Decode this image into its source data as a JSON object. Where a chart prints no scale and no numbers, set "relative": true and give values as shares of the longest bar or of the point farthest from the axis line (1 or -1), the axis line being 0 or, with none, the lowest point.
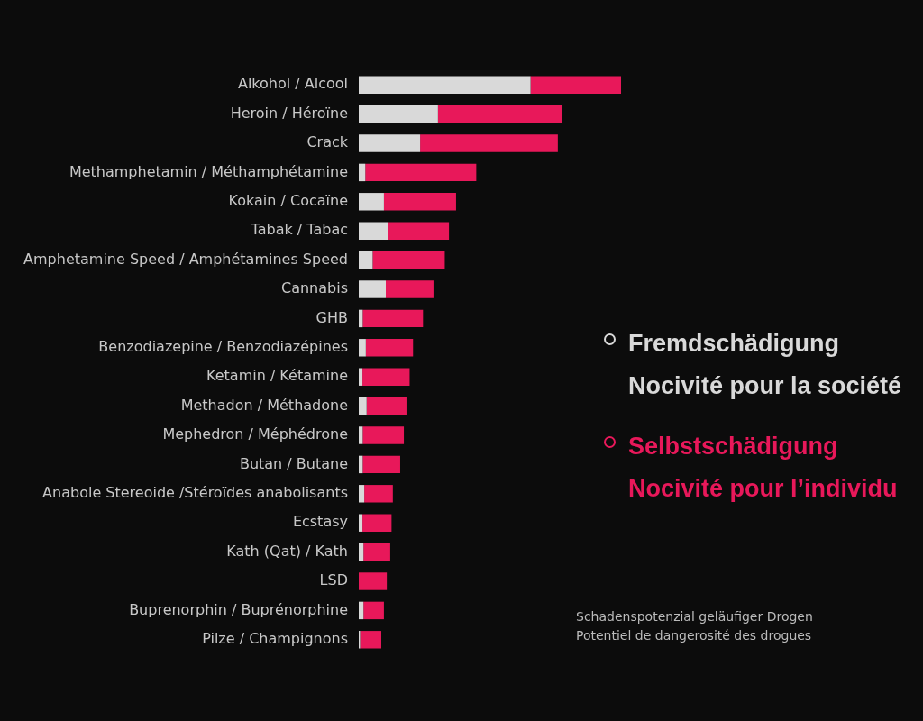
{
  "chart_data": {
    "type": "bar",
    "orientation": "horizontal",
    "stacked": true,
    "relative": true,
    "legend": "right",
    "categories": [
      "Alkohol / Alcool",
      "Heroin / Héroïne",
      "Crack",
      "Methamphetamin / Méthamphétamine",
      "Kokain / Cocaïne",
      "Tabak / Tabac",
      "Amphetamine Speed / Amphétamines Speed",
      "Cannabis",
      "GHB",
      "Benzodiazepine / Benzodiazépines",
      "Ketamin / Kétamine",
      "Methadon / Méthadone",
      "Mephedron / Méphédrone",
      "Butan / Butane",
      "Anabole Stereoide /Stéroïdes anabolisants",
      "Ecstasy",
      "Kath (Qat) / Kath",
      "LSD",
      "Buprenorphin / Buprénorphine",
      "Pilze / Champignons"
    ],
    "series": [
      {
        "name": "Fremdschädigung\nNocivité pour la société",
        "color": "#d9d9d9",
        "values": [
          0.655,
          0.302,
          0.234,
          0.025,
          0.096,
          0.113,
          0.053,
          0.103,
          0.015,
          0.027,
          0.014,
          0.03,
          0.015,
          0.015,
          0.021,
          0.014,
          0.018,
          0,
          0.018,
          0.005
        ]
      },
      {
        "name": "Selbstschädigung\nNocivité pour l’individu",
        "color": "#e8185a",
        "values": [
          0.345,
          0.472,
          0.525,
          0.423,
          0.275,
          0.231,
          0.275,
          0.182,
          0.23,
          0.18,
          0.18,
          0.152,
          0.157,
          0.143,
          0.109,
          0.111,
          0.102,
          0.107,
          0.078,
          0.081
        ]
      }
    ],
    "annotations": [
      "Schadenspotenzial geläufiger Drogen\nPotentiel de dangerosité des drogues"
    ]
  }
}
